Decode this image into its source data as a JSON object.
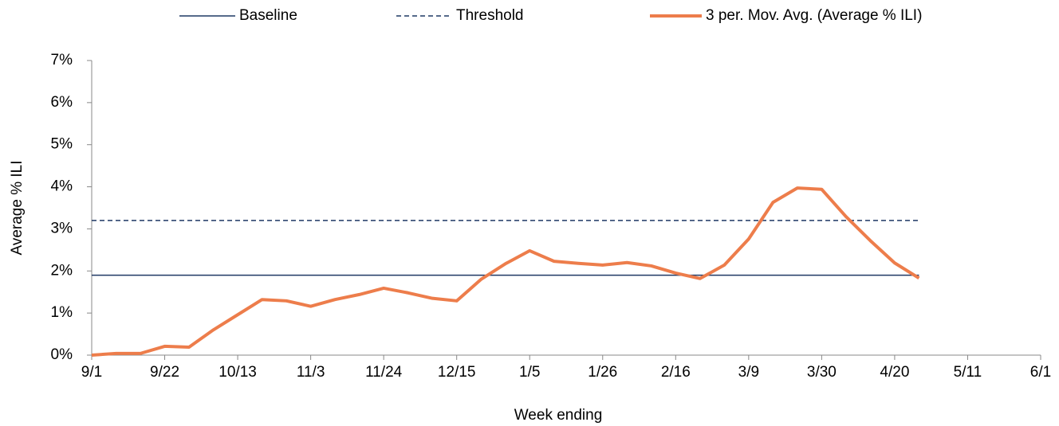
{
  "chart_data": {
    "type": "line",
    "x_label": "Week ending",
    "y_label": "Average % ILI",
    "categories": [
      "9/1",
      null,
      null,
      "9/22",
      null,
      null,
      "10/13",
      null,
      null,
      "11/3",
      null,
      null,
      "11/24",
      null,
      null,
      "12/15",
      null,
      null,
      "1/5",
      null,
      null,
      "1/26",
      null,
      null,
      "2/16",
      null,
      null,
      "3/9",
      null,
      null,
      "3/30",
      null,
      null,
      "4/20",
      null,
      null,
      "5/11",
      null,
      null,
      "6/1"
    ],
    "series": [
      {
        "name": "Baseline",
        "color": "#1f3864",
        "line_style": "solid",
        "line_width": 1.5,
        "values": [
          1.9,
          1.9,
          1.9,
          1.9,
          1.9,
          1.9,
          1.9,
          1.9,
          1.9,
          1.9,
          1.9,
          1.9,
          1.9,
          1.9,
          1.9,
          1.9,
          1.9,
          1.9,
          1.9,
          1.9,
          1.9,
          1.9,
          1.9,
          1.9,
          1.9,
          1.9,
          1.9,
          1.9,
          1.9,
          1.9,
          1.9,
          1.9,
          1.9,
          1.9,
          1.9,
          null,
          null,
          null,
          null,
          null
        ]
      },
      {
        "name": "Threshold",
        "color": "#1f3864",
        "line_style": "dashed",
        "line_width": 1.5,
        "values": [
          3.2,
          3.2,
          3.2,
          3.2,
          3.2,
          3.2,
          3.2,
          3.2,
          3.2,
          3.2,
          3.2,
          3.2,
          3.2,
          3.2,
          3.2,
          3.2,
          3.2,
          3.2,
          3.2,
          3.2,
          3.2,
          3.2,
          3.2,
          3.2,
          3.2,
          3.2,
          3.2,
          3.2,
          3.2,
          3.2,
          3.2,
          3.2,
          3.2,
          3.2,
          3.2,
          null,
          null,
          null,
          null,
          null
        ]
      },
      {
        "name": "3 per. Mov. Avg. (Average % ILI)",
        "color": "#ed7d4b",
        "line_style": "solid",
        "line_width": 4,
        "values": [
          0,
          0.04,
          0.04,
          0.21,
          0.19,
          0.6,
          0.96,
          1.32,
          1.29,
          1.16,
          1.32,
          1.44,
          1.59,
          1.48,
          1.35,
          1.29,
          1.8,
          2.17,
          2.48,
          2.23,
          2.18,
          2.14,
          2.2,
          2.12,
          1.95,
          1.82,
          2.14,
          2.76,
          3.63,
          3.97,
          3.94,
          3.29,
          2.72,
          2.19,
          1.83,
          null,
          null,
          null,
          null,
          null
        ]
      }
    ],
    "ylim": [
      0,
      7
    ],
    "yticks": [
      {
        "value": 0,
        "label": "0%"
      },
      {
        "value": 1,
        "label": "1%"
      },
      {
        "value": 2,
        "label": "2%"
      },
      {
        "value": 3,
        "label": "3%"
      },
      {
        "value": 4,
        "label": "4%"
      },
      {
        "value": 5,
        "label": "5%"
      },
      {
        "value": 6,
        "label": "6%"
      },
      {
        "value": 7,
        "label": "7%"
      }
    ],
    "grid": false,
    "legend": "top"
  }
}
